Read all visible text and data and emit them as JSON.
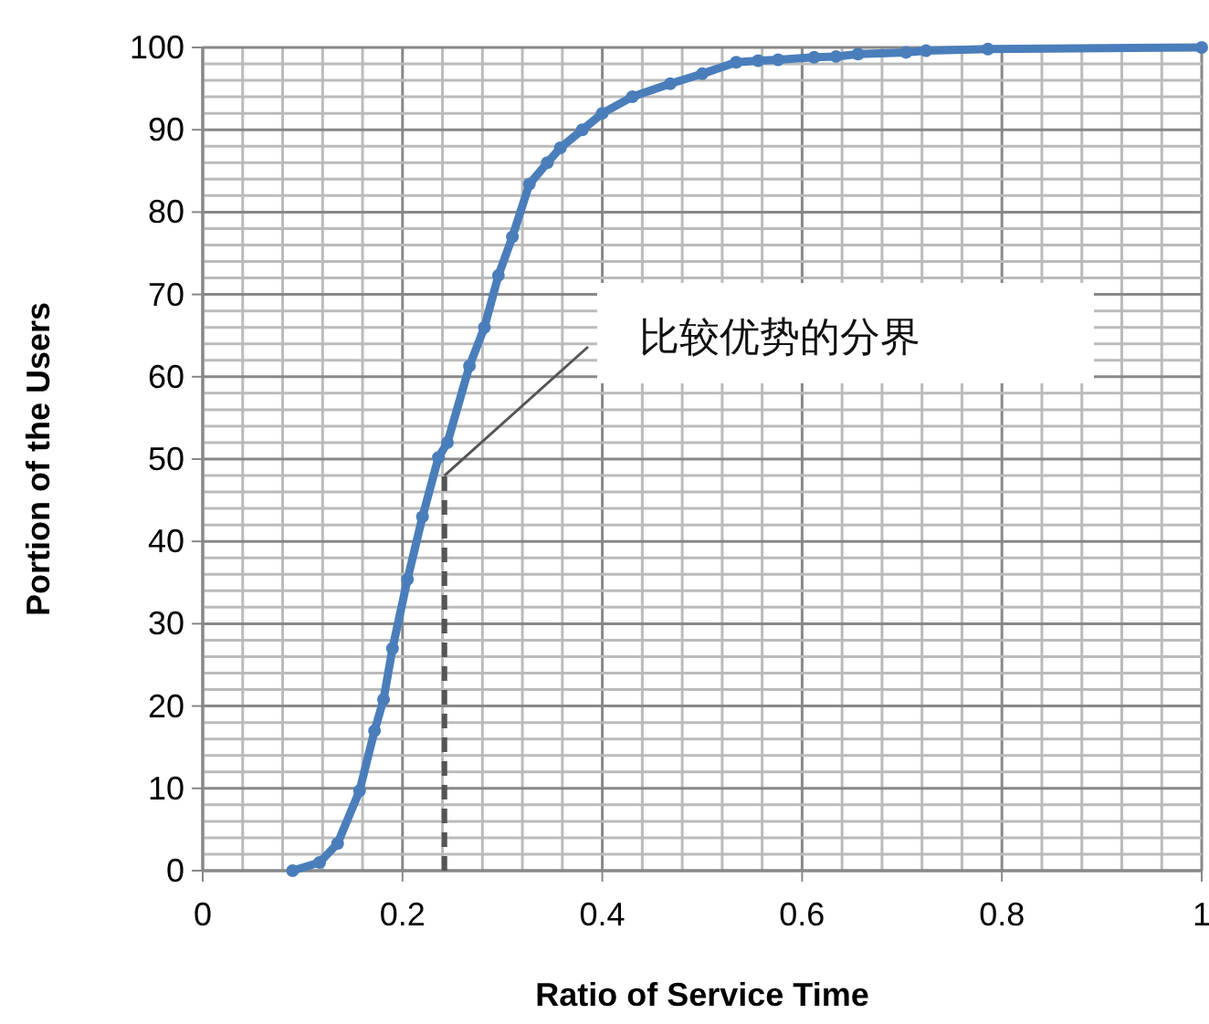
{
  "chart_data": {
    "type": "line",
    "xlabel": "Ratio of Service Time",
    "ylabel": "Portion of the Users",
    "x": [
      0.09,
      0.117,
      0.135,
      0.157,
      0.172,
      0.181,
      0.19,
      0.205,
      0.22,
      0.236,
      0.245,
      0.267,
      0.282,
      0.296,
      0.31,
      0.327,
      0.345,
      0.358,
      0.38,
      0.4,
      0.43,
      0.468,
      0.5,
      0.534,
      0.556,
      0.576,
      0.612,
      0.634,
      0.656,
      0.704,
      0.724,
      0.786,
      1.0
    ],
    "series": [
      {
        "color": "#4a7ebb",
        "values": [
          0,
          1,
          3.3,
          9.7,
          17,
          20.8,
          27,
          35.4,
          43,
          50.2,
          52,
          61.3,
          66,
          72.3,
          77,
          83.4,
          86,
          87.8,
          90,
          92,
          94,
          95.6,
          96.8,
          98.2,
          98.4,
          98.5,
          98.8,
          98.9,
          99.2,
          99.4,
          99.6,
          99.8,
          100
        ]
      }
    ],
    "xlim": [
      0,
      1
    ],
    "xticks": [
      0,
      0.2,
      0.4,
      0.6,
      0.8,
      1
    ],
    "ylim": [
      0,
      100
    ],
    "yticks": [
      0,
      10,
      20,
      30,
      40,
      50,
      60,
      70,
      80,
      90,
      100
    ],
    "grid": true,
    "marker": "circle",
    "line_style": "solid",
    "ref_lines": [
      {
        "axis": "x",
        "value": 0.242,
        "line_style": "dashed",
        "color": "#555555"
      }
    ],
    "annotations": [
      {
        "text": "比较优势的分界",
        "x": 0.242,
        "y": 48
      }
    ]
  }
}
